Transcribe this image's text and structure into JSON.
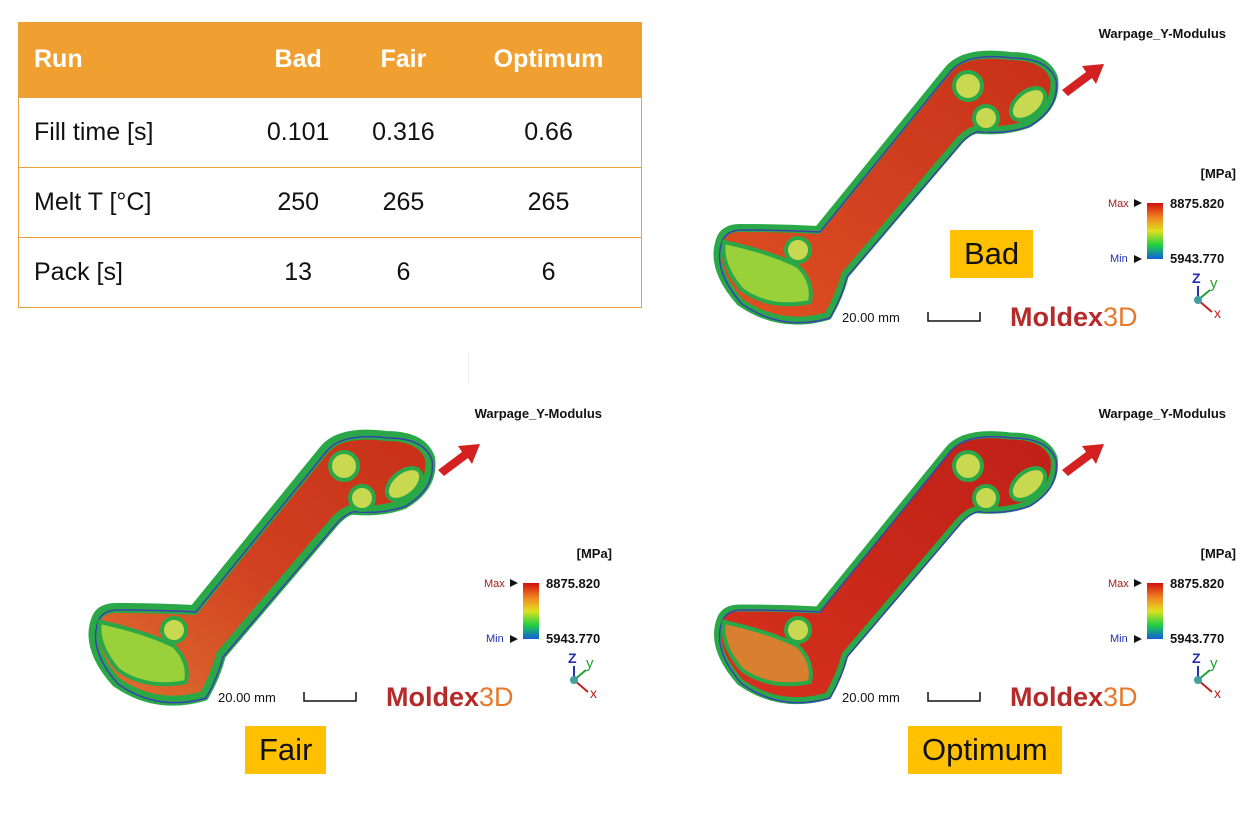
{
  "table": {
    "headers": [
      "Run",
      "Bad",
      "Fair",
      "Optimum"
    ],
    "rows": [
      {
        "label": "Fill time [s]",
        "values": [
          "0.101",
          "0.316",
          "0.66"
        ]
      },
      {
        "label": "Melt T [°C]",
        "values": [
          "250",
          "265",
          "265"
        ]
      },
      {
        "label": "Pack [s]",
        "values": [
          "13",
          "6",
          "6"
        ]
      }
    ],
    "colors": {
      "header_bg": "#F0A030",
      "border": "#E8A040"
    }
  },
  "panels": [
    {
      "id": "bad",
      "result_title": "Warpage_Y-Modulus",
      "unit": "[MPa]",
      "legend": {
        "max_label": "Max",
        "max_value": "8875.820",
        "min_label": "Min",
        "min_value": "5943.770"
      },
      "scale_label": "20.00 mm",
      "logo": {
        "main": "Moldex",
        "suffix": "3D"
      },
      "axes": {
        "z": "Z",
        "y": "y",
        "x": "x"
      },
      "tag": "Bad"
    },
    {
      "id": "fair",
      "result_title": "Warpage_Y-Modulus",
      "unit": "[MPa]",
      "legend": {
        "max_label": "Max",
        "max_value": "8875.820",
        "min_label": "Min",
        "min_value": "5943.770"
      },
      "scale_label": "20.00 mm",
      "logo": {
        "main": "Moldex",
        "suffix": "3D"
      },
      "axes": {
        "z": "Z",
        "y": "y",
        "x": "x"
      },
      "tag": "Fair"
    },
    {
      "id": "optimum",
      "result_title": "Warpage_Y-Modulus",
      "unit": "[MPa]",
      "legend": {
        "max_label": "Max",
        "max_value": "8875.820",
        "min_label": "Min",
        "min_value": "5943.770"
      },
      "scale_label": "20.00 mm",
      "logo": {
        "main": "Moldex",
        "suffix": "3D"
      },
      "axes": {
        "z": "Z",
        "y": "y",
        "x": "x"
      },
      "tag": "Optimum"
    }
  ],
  "colors": {
    "tag_bg": "#FFC000",
    "logo_red": "#B52A2A",
    "logo_orange": "#E8782A",
    "arrow": "#D42020"
  }
}
